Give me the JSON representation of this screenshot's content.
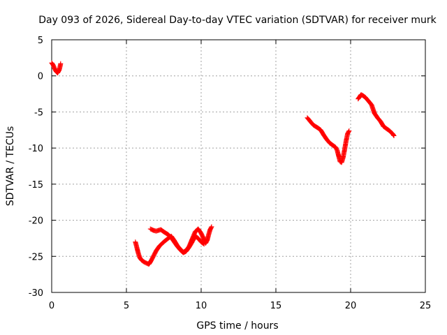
{
  "chart_data": {
    "type": "scatter",
    "title": "Day 093 of 2026, Sidereal Day-to-day VTEC variation (SDTVAR) for receiver murk",
    "xlabel": "GPS time / hours",
    "ylabel": "SDTVAR / TECUs",
    "xlim": [
      0,
      25
    ],
    "ylim": [
      -30,
      5
    ],
    "xticks": [
      "0",
      "5",
      "10",
      "15",
      "20",
      "25"
    ],
    "yticks": [
      "5",
      "0",
      "-5",
      "-10",
      "-15",
      "-20",
      "-25",
      "-30"
    ],
    "grid": true,
    "marker": "+",
    "color": "#ff0000",
    "series": [
      {
        "segments": [
          [
            [
              0.0,
              1.8
            ],
            [
              0.1,
              1.5
            ],
            [
              0.2,
              1.0
            ],
            [
              0.3,
              0.6
            ],
            [
              0.4,
              0.4
            ],
            [
              0.5,
              0.8
            ],
            [
              0.55,
              1.2
            ],
            [
              0.6,
              1.7
            ]
          ],
          [
            [
              5.6,
              -23.0
            ],
            [
              5.7,
              -23.8
            ],
            [
              5.8,
              -24.6
            ],
            [
              5.9,
              -25.2
            ],
            [
              6.0,
              -25.5
            ],
            [
              6.2,
              -25.8
            ],
            [
              6.4,
              -26.0
            ],
            [
              6.5,
              -26.1
            ],
            [
              6.6,
              -25.8
            ],
            [
              6.8,
              -25.0
            ],
            [
              7.0,
              -24.2
            ],
            [
              7.2,
              -23.6
            ],
            [
              7.5,
              -23.0
            ],
            [
              7.8,
              -22.5
            ],
            [
              8.0,
              -22.2
            ],
            [
              8.2,
              -22.8
            ],
            [
              8.4,
              -23.5
            ],
            [
              8.6,
              -24.0
            ],
            [
              8.8,
              -24.4
            ],
            [
              9.0,
              -24.2
            ],
            [
              9.2,
              -23.6
            ],
            [
              9.4,
              -22.6
            ],
            [
              9.6,
              -21.6
            ],
            [
              9.8,
              -21.2
            ],
            [
              10.0,
              -21.8
            ],
            [
              10.2,
              -22.7
            ],
            [
              10.3,
              -23.2
            ],
            [
              10.4,
              -22.8
            ],
            [
              10.5,
              -22.0
            ],
            [
              10.6,
              -21.3
            ],
            [
              10.7,
              -20.9
            ]
          ],
          [
            [
              6.6,
              -21.2
            ],
            [
              6.8,
              -21.4
            ],
            [
              7.0,
              -21.5
            ],
            [
              7.3,
              -21.3
            ],
            [
              7.5,
              -21.6
            ],
            [
              7.8,
              -22.0
            ],
            [
              8.0,
              -22.4
            ],
            [
              8.2,
              -23.0
            ],
            [
              8.4,
              -23.6
            ],
            [
              8.6,
              -24.1
            ],
            [
              8.8,
              -24.5
            ],
            [
              9.0,
              -24.3
            ],
            [
              9.2,
              -23.7
            ],
            [
              9.4,
              -23.0
            ],
            [
              9.6,
              -22.2
            ],
            [
              9.8,
              -22.5
            ],
            [
              10.0,
              -23.0
            ],
            [
              10.2,
              -23.3
            ]
          ],
          [
            [
              17.1,
              -5.8
            ],
            [
              17.3,
              -6.3
            ],
            [
              17.5,
              -6.8
            ],
            [
              17.8,
              -7.2
            ],
            [
              18.0,
              -7.5
            ],
            [
              18.2,
              -8.2
            ],
            [
              18.4,
              -8.8
            ],
            [
              18.6,
              -9.3
            ],
            [
              18.8,
              -9.6
            ],
            [
              19.0,
              -9.9
            ],
            [
              19.1,
              -10.3
            ],
            [
              19.2,
              -11.1
            ],
            [
              19.3,
              -11.9
            ],
            [
              19.4,
              -12.0
            ],
            [
              19.5,
              -11.3
            ],
            [
              19.6,
              -10.2
            ],
            [
              19.7,
              -9.0
            ],
            [
              19.8,
              -8.0
            ],
            [
              19.9,
              -7.6
            ]
          ],
          [
            [
              20.5,
              -3.2
            ],
            [
              20.6,
              -2.9
            ],
            [
              20.7,
              -2.6
            ],
            [
              20.8,
              -2.7
            ],
            [
              21.0,
              -3.0
            ],
            [
              21.2,
              -3.5
            ],
            [
              21.4,
              -4.0
            ],
            [
              21.5,
              -4.6
            ],
            [
              21.6,
              -5.2
            ],
            [
              21.8,
              -5.8
            ],
            [
              22.0,
              -6.3
            ],
            [
              22.2,
              -7.0
            ],
            [
              22.4,
              -7.3
            ],
            [
              22.6,
              -7.6
            ],
            [
              22.8,
              -8.0
            ],
            [
              22.9,
              -8.3
            ]
          ]
        ]
      }
    ]
  }
}
